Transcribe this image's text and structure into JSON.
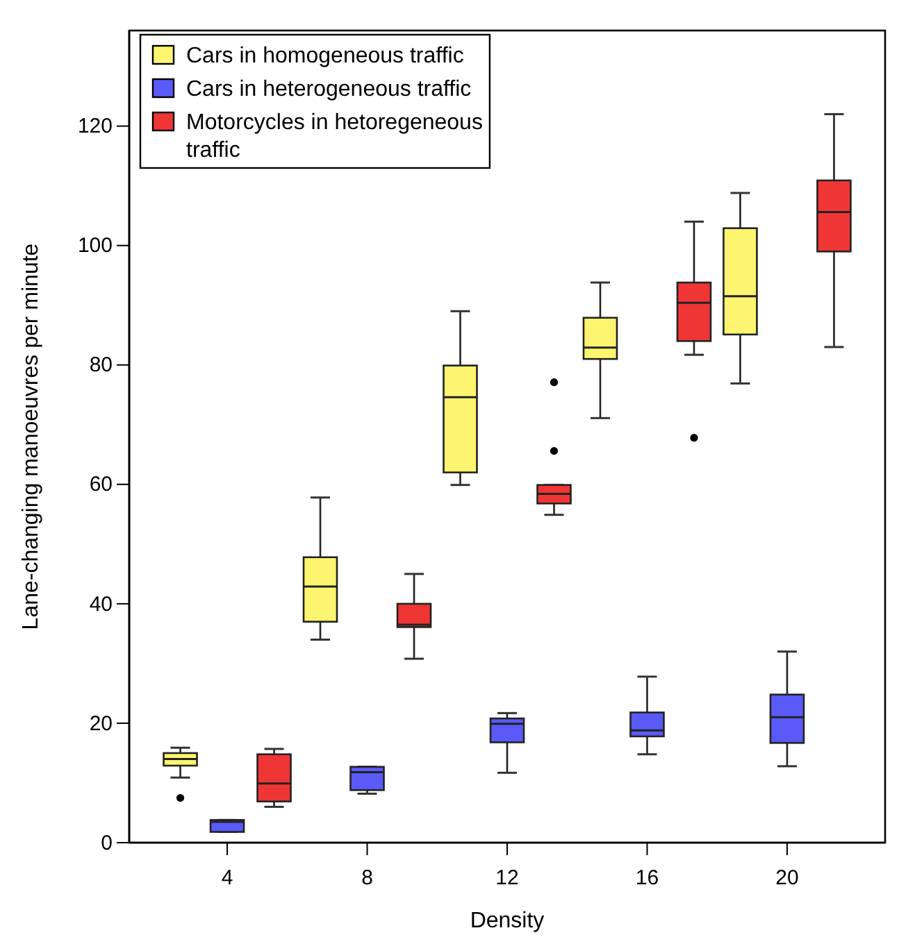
{
  "chart_data": {
    "type": "box",
    "xlabel": "Density",
    "ylabel": "Lane-changing manoeuvres per minute",
    "categories": [
      "4",
      "8",
      "12",
      "16",
      "20"
    ],
    "ylim": [
      0,
      136
    ],
    "yticks": [
      0,
      20,
      40,
      60,
      80,
      100,
      120
    ],
    "grid": false,
    "legend": "top left",
    "series": [
      {
        "name": "Cars in homogeneous traffic",
        "color": "#fdf56f",
        "boxes": [
          {
            "low": 10.9,
            "q1": 12.9,
            "median": 14.0,
            "q3": 15.0,
            "high": 15.9,
            "outliers": [
              7.5
            ]
          },
          {
            "low": 34.0,
            "q1": 37.0,
            "median": 42.9,
            "q3": 47.8,
            "high": 57.8
          },
          {
            "low": 59.9,
            "q1": 62.0,
            "median": 74.6,
            "q3": 79.9,
            "high": 89.0
          },
          {
            "low": 71.1,
            "q1": 81.0,
            "median": 82.9,
            "q3": 87.9,
            "high": 93.8
          },
          {
            "low": 76.9,
            "q1": 85.1,
            "median": 91.5,
            "q3": 102.9,
            "high": 108.8
          }
        ]
      },
      {
        "name": "Cars in heterogeneous traffic",
        "color": "#5a5af8",
        "boxes": [
          {
            "low": 1.8,
            "q1": 1.8,
            "median": 3.5,
            "q3": 3.8,
            "high": 3.8
          },
          {
            "low": 8.2,
            "q1": 8.8,
            "median": 11.8,
            "q3": 12.7,
            "high": 12.7
          },
          {
            "low": 11.7,
            "q1": 16.8,
            "median": 19.9,
            "q3": 20.8,
            "high": 21.7
          },
          {
            "low": 14.8,
            "q1": 17.8,
            "median": 18.8,
            "q3": 21.8,
            "high": 27.8
          },
          {
            "low": 12.8,
            "q1": 16.7,
            "median": 21.0,
            "q3": 24.8,
            "high": 32.0
          }
        ]
      },
      {
        "name": "Motorcycles in hetoregeneous traffic",
        "color": "#f03535",
        "boxes": [
          {
            "low": 6.0,
            "q1": 6.9,
            "median": 9.9,
            "q3": 14.8,
            "high": 15.7
          },
          {
            "low": 30.8,
            "q1": 36.1,
            "median": 36.5,
            "q3": 40.0,
            "high": 45.0
          },
          {
            "low": 54.9,
            "q1": 56.8,
            "median": 58.4,
            "q3": 59.9,
            "high": 59.9,
            "outliers": [
              65.6,
              77.1
            ]
          },
          {
            "low": 81.7,
            "q1": 84.0,
            "median": 90.4,
            "q3": 93.8,
            "high": 104.0,
            "outliers": [
              67.8
            ]
          },
          {
            "low": 83.0,
            "q1": 99.0,
            "median": 105.6,
            "q3": 110.9,
            "high": 122.0
          }
        ]
      }
    ]
  }
}
